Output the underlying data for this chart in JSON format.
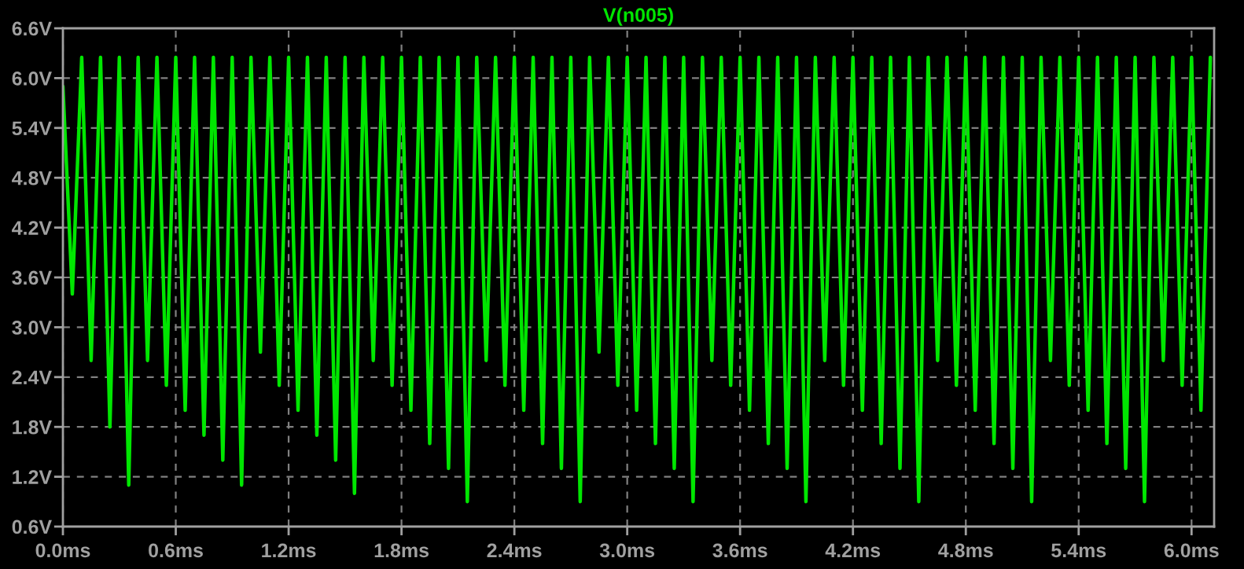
{
  "chart_data": {
    "type": "line",
    "title": "V(n005)",
    "x": [
      0,
      0.05,
      0.1,
      0.15,
      0.2,
      0.25,
      0.3,
      0.35,
      0.4,
      0.45,
      0.5,
      0.55,
      0.6,
      0.65,
      0.7,
      0.75,
      0.8,
      0.85,
      0.9,
      0.95,
      1.0,
      1.05,
      1.1,
      1.15,
      1.2,
      1.25,
      1.3,
      1.35,
      1.4,
      1.45,
      1.5,
      1.55,
      1.6,
      1.65,
      1.7,
      1.75,
      1.8,
      1.85,
      1.9,
      1.95,
      2.0,
      2.05,
      2.1,
      2.15,
      2.2,
      2.25,
      2.3,
      2.35,
      2.4,
      2.45,
      2.5,
      2.55,
      2.6,
      2.65,
      2.7,
      2.75,
      2.8,
      2.85,
      2.9,
      2.95,
      3.0,
      3.05,
      3.1,
      3.15,
      3.2,
      3.25,
      3.3,
      3.35,
      3.4,
      3.45,
      3.5,
      3.55,
      3.6,
      3.65,
      3.7,
      3.75,
      3.8,
      3.85,
      3.9,
      3.95,
      4.0,
      4.05,
      4.1,
      4.15,
      4.2,
      4.25,
      4.3,
      4.35,
      4.4,
      4.45,
      4.5,
      4.55,
      4.6,
      4.65,
      4.7,
      4.75,
      4.8,
      4.85,
      4.9,
      4.95,
      5.0,
      5.05,
      5.1,
      5.15,
      5.2,
      5.25,
      5.3,
      5.35,
      5.4,
      5.45,
      5.5,
      5.55,
      5.6,
      5.65,
      5.7,
      5.75,
      5.8,
      5.85,
      5.9,
      5.95,
      6.0,
      6.05,
      6.1
    ],
    "series": [
      {
        "color": "#00e600",
        "values": [
          5.9,
          3.4,
          6.25,
          2.6,
          6.25,
          1.8,
          6.25,
          1.1,
          6.25,
          2.6,
          6.25,
          2.3,
          6.25,
          2.0,
          6.25,
          1.7,
          6.25,
          1.4,
          6.25,
          1.1,
          6.25,
          2.7,
          6.25,
          2.3,
          6.25,
          2.0,
          6.25,
          1.7,
          6.25,
          1.4,
          6.25,
          1.0,
          6.25,
          2.6,
          6.25,
          2.3,
          6.25,
          2.0,
          6.25,
          1.6,
          6.25,
          1.3,
          6.25,
          0.9,
          6.25,
          2.6,
          6.25,
          2.3,
          6.25,
          2.0,
          6.25,
          1.6,
          6.25,
          1.3,
          6.25,
          0.9,
          6.25,
          2.7,
          6.25,
          2.3,
          6.25,
          2.0,
          6.25,
          1.6,
          6.25,
          1.3,
          6.25,
          0.9,
          6.25,
          2.6,
          6.25,
          2.3,
          6.25,
          2.0,
          6.25,
          1.6,
          6.25,
          1.3,
          6.25,
          0.9,
          6.25,
          2.6,
          6.25,
          2.3,
          6.25,
          2.0,
          6.25,
          1.6,
          6.25,
          1.3,
          6.25,
          0.9,
          6.25,
          2.6,
          6.25,
          2.3,
          6.25,
          2.0,
          6.25,
          1.6,
          6.25,
          1.3,
          6.25,
          0.9,
          6.25,
          2.6,
          6.25,
          2.3,
          6.25,
          2.0,
          6.25,
          1.6,
          6.25,
          1.3,
          6.25,
          0.9,
          6.25,
          2.6,
          6.25,
          2.3,
          6.25,
          2.0,
          6.25
        ]
      }
    ],
    "xlim": [
      0,
      6.12
    ],
    "xticks": [
      {
        "value": 0,
        "label": "0.0ms"
      },
      {
        "value": 0.6,
        "label": "0.6ms"
      },
      {
        "value": 1.2,
        "label": "1.2ms"
      },
      {
        "value": 1.8,
        "label": "1.8ms"
      },
      {
        "value": 2.4,
        "label": "2.4ms"
      },
      {
        "value": 3.0,
        "label": "3.0ms"
      },
      {
        "value": 3.6,
        "label": "3.6ms"
      },
      {
        "value": 4.2,
        "label": "4.2ms"
      },
      {
        "value": 4.8,
        "label": "4.8ms"
      },
      {
        "value": 5.4,
        "label": "5.4ms"
      },
      {
        "value": 6.0,
        "label": "6.0ms"
      }
    ],
    "ylim": [
      0.6,
      6.6
    ],
    "yticks": [
      {
        "value": 0.6,
        "label": "0.6V"
      },
      {
        "value": 1.2,
        "label": "1.2V"
      },
      {
        "value": 1.8,
        "label": "1.8V"
      },
      {
        "value": 2.4,
        "label": "2.4V"
      },
      {
        "value": 3.0,
        "label": "3.0V"
      },
      {
        "value": 3.6,
        "label": "3.6V"
      },
      {
        "value": 4.2,
        "label": "4.2V"
      },
      {
        "value": 4.8,
        "label": "4.8V"
      },
      {
        "value": 5.4,
        "label": "5.4V"
      },
      {
        "value": 6.0,
        "label": "6.0V"
      },
      {
        "value": 6.6,
        "label": "6.6V"
      }
    ],
    "grid": true,
    "line_style": "solid",
    "marker": "none"
  }
}
